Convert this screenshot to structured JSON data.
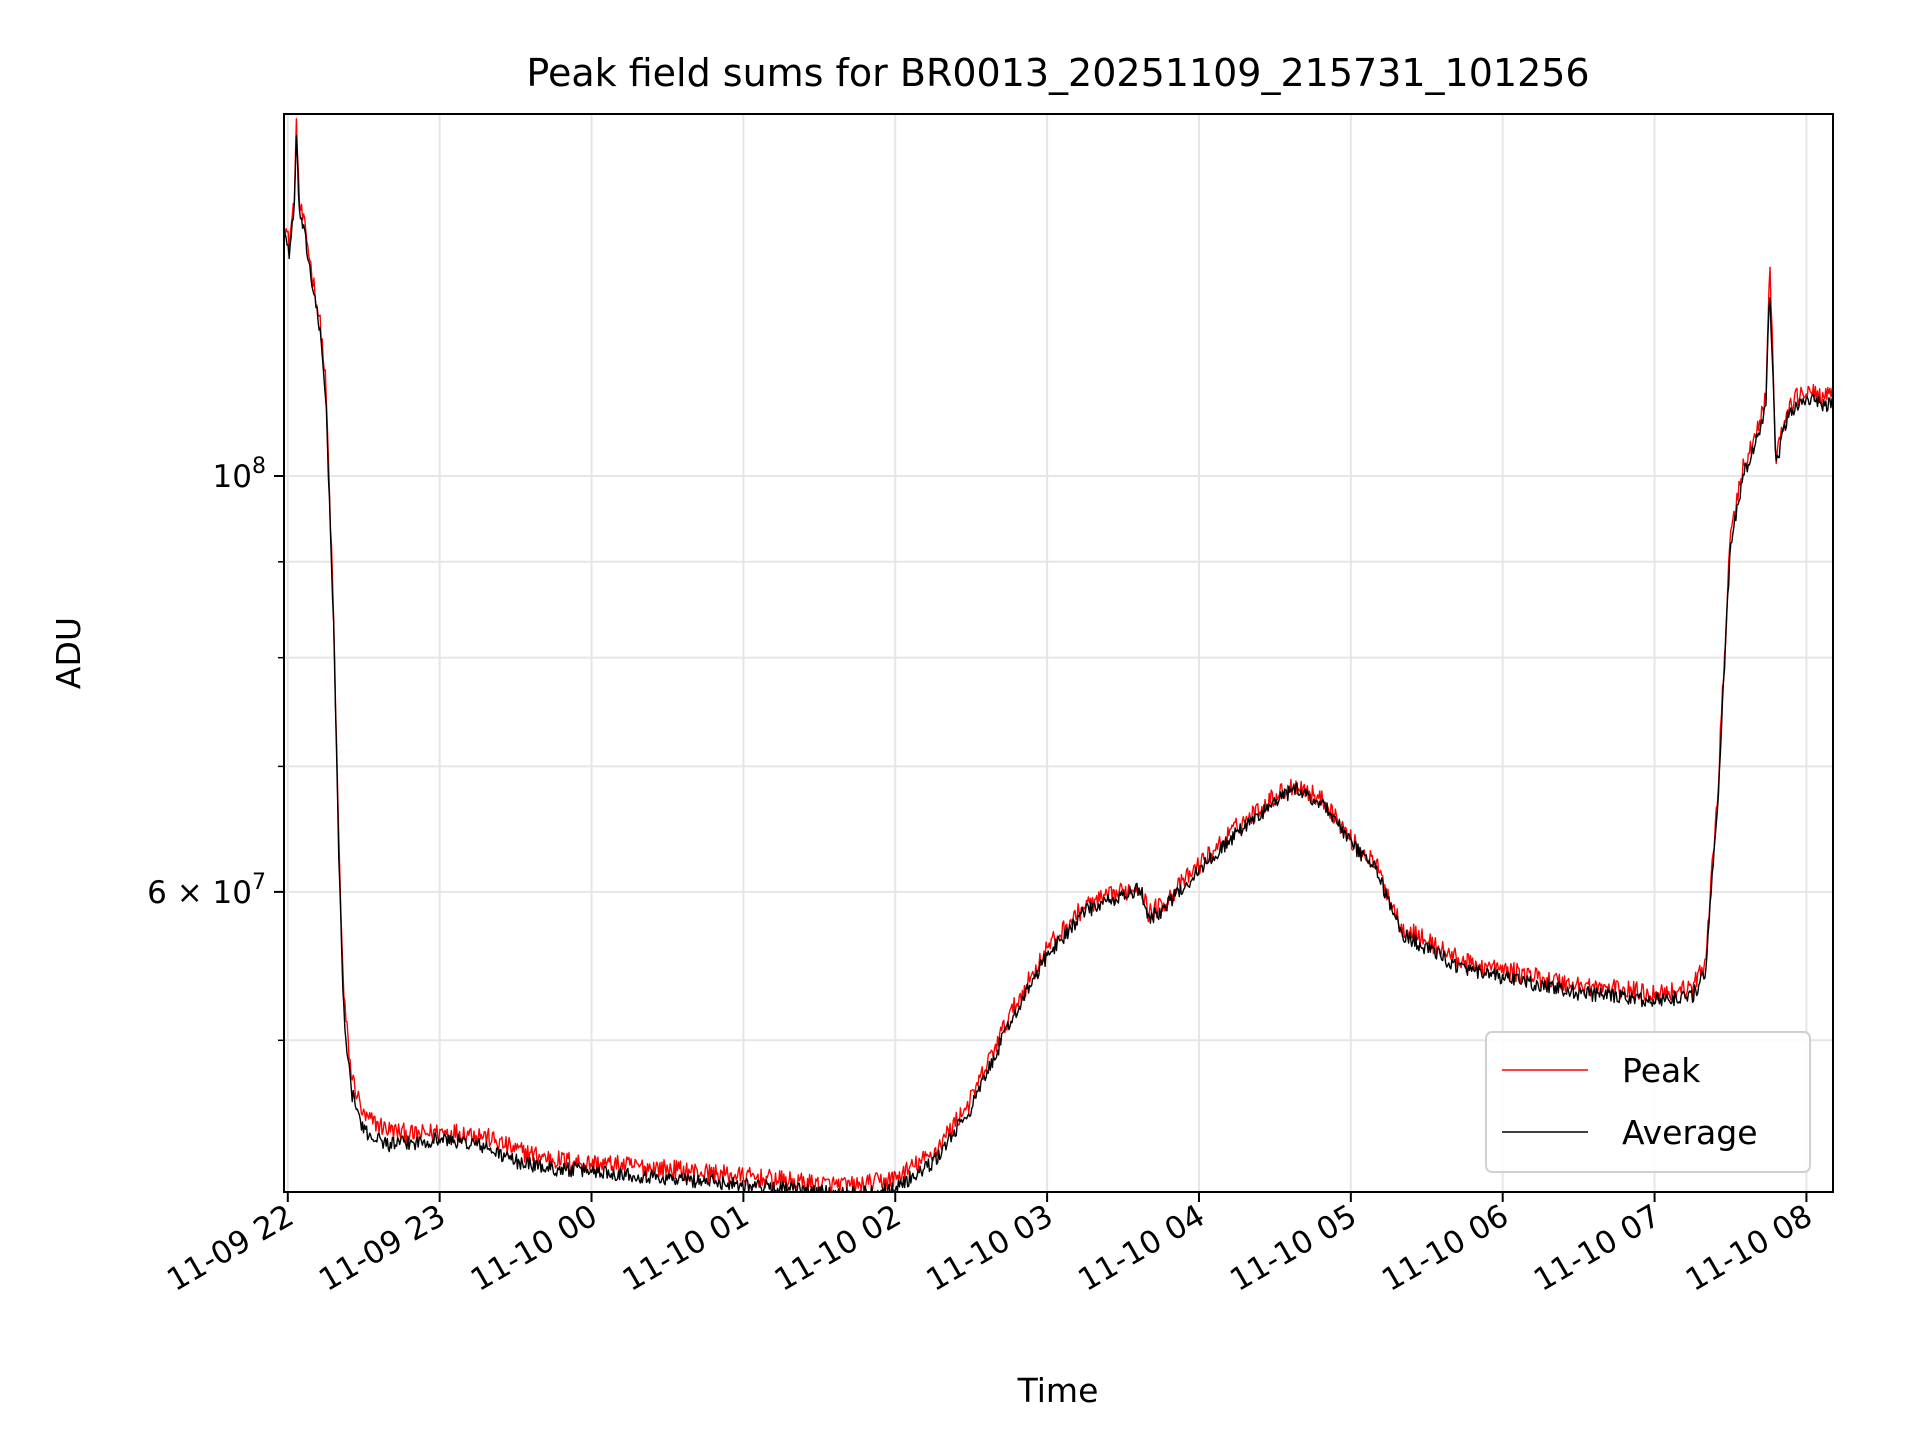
{
  "chart_data": {
    "type": "line",
    "title": "Peak field sums for BR0013_20251109_215731_101256",
    "xlabel": "Time",
    "ylabel": "ADU",
    "x_axis": "datetime",
    "y_scale": "log",
    "xlim": [
      "2025-11-09 21:58:30",
      "2025-11-10 08:10:30"
    ],
    "ylim": [
      41500000,
      156000000
    ],
    "x_ticks": [
      {
        "label": "11-09 22",
        "value": "2025-11-09 22:00"
      },
      {
        "label": "11-09 23",
        "value": "2025-11-09 23:00"
      },
      {
        "label": "11-10 00",
        "value": "2025-11-10 00:00"
      },
      {
        "label": "11-10 01",
        "value": "2025-11-10 01:00"
      },
      {
        "label": "11-10 02",
        "value": "2025-11-10 02:00"
      },
      {
        "label": "11-10 03",
        "value": "2025-11-10 03:00"
      },
      {
        "label": "11-10 04",
        "value": "2025-11-10 04:00"
      },
      {
        "label": "11-10 05",
        "value": "2025-11-10 05:00"
      },
      {
        "label": "11-10 06",
        "value": "2025-11-10 06:00"
      },
      {
        "label": "11-10 07",
        "value": "2025-11-10 07:00"
      },
      {
        "label": "11-10 08",
        "value": "2025-11-10 08:00"
      }
    ],
    "y_major_ticks": [
      {
        "value": 60000000,
        "mantissa": "6 × 10",
        "exponent": "7"
      },
      {
        "value": 100000000,
        "mantissa": "10",
        "exponent": "8"
      }
    ],
    "y_minor_ticks": [
      50000000,
      70000000,
      80000000,
      90000000
    ],
    "grid": true,
    "legend": {
      "position": "lower-right"
    },
    "series": [
      {
        "name": "Peak",
        "color": "#ff0000",
        "noise": 0.012,
        "points": [
          [
            "2025-11-09 21:58:30",
            137000000
          ],
          [
            "2025-11-09 22:00:30",
            133000000
          ],
          [
            "2025-11-09 22:02:30",
            140000000
          ],
          [
            "2025-11-09 22:03:30",
            155000000
          ],
          [
            "2025-11-09 22:04:30",
            140000000
          ],
          [
            "2025-11-09 22:07:00",
            135000000
          ],
          [
            "2025-11-09 22:13:00",
            120000000
          ],
          [
            "2025-11-09 22:15:00",
            112000000
          ],
          [
            "2025-11-09 22:18:00",
            85000000
          ],
          [
            "2025-11-09 22:20:00",
            65000000
          ],
          [
            "2025-11-09 22:22:00",
            53000000
          ],
          [
            "2025-11-09 22:25:00",
            48000000
          ],
          [
            "2025-11-09 22:30:00",
            45500000
          ],
          [
            "2025-11-09 22:40:00",
            44800000
          ],
          [
            "2025-11-09 22:50:00",
            44500000
          ],
          [
            "2025-11-09 23:00:00",
            44700000
          ],
          [
            "2025-11-09 23:15:00",
            44600000
          ],
          [
            "2025-11-09 23:30:00",
            43700000
          ],
          [
            "2025-11-09 23:45:00",
            43200000
          ],
          [
            "2025-11-10 00:00:00",
            43000000
          ],
          [
            "2025-11-10 00:30:00",
            42700000
          ],
          [
            "2025-11-10 01:00:00",
            42300000
          ],
          [
            "2025-11-10 01:30:00",
            41900000
          ],
          [
            "2025-11-10 01:45:00",
            41800000
          ],
          [
            "2025-11-10 02:00:00",
            42200000
          ],
          [
            "2025-11-10 02:15:00",
            43500000
          ],
          [
            "2025-11-10 02:30:00",
            46500000
          ],
          [
            "2025-11-10 02:45:00",
            51500000
          ],
          [
            "2025-11-10 03:00:00",
            56000000
          ],
          [
            "2025-11-10 03:15:00",
            59000000
          ],
          [
            "2025-11-10 03:30:00",
            60000000
          ],
          [
            "2025-11-10 03:37:00",
            60500000
          ],
          [
            "2025-11-10 03:40:00",
            58500000
          ],
          [
            "2025-11-10 03:45:00",
            59000000
          ],
          [
            "2025-11-10 04:00:00",
            62000000
          ],
          [
            "2025-11-10 04:15:00",
            65000000
          ],
          [
            "2025-11-10 04:30:00",
            67500000
          ],
          [
            "2025-11-10 04:38:00",
            68500000
          ],
          [
            "2025-11-10 04:50:00",
            67000000
          ],
          [
            "2025-11-10 05:00:00",
            64000000
          ],
          [
            "2025-11-10 05:10:00",
            62000000
          ],
          [
            "2025-11-10 05:20:00",
            57500000
          ],
          [
            "2025-11-10 05:30:00",
            56500000
          ],
          [
            "2025-11-10 05:45:00",
            55000000
          ],
          [
            "2025-11-10 06:00:00",
            54500000
          ],
          [
            "2025-11-10 06:30:00",
            53500000
          ],
          [
            "2025-11-10 07:00:00",
            53000000
          ],
          [
            "2025-11-10 07:15:00",
            53300000
          ],
          [
            "2025-11-10 07:20:00",
            55000000
          ],
          [
            "2025-11-10 07:25:00",
            68000000
          ],
          [
            "2025-11-10 07:30:00",
            93000000
          ],
          [
            "2025-11-10 07:35:00",
            101000000
          ],
          [
            "2025-11-10 07:40:00",
            105000000
          ],
          [
            "2025-11-10 07:44:00",
            110000000
          ],
          [
            "2025-11-10 07:45:30",
            130000000
          ],
          [
            "2025-11-10 07:48:00",
            102000000
          ],
          [
            "2025-11-10 07:52:00",
            108000000
          ],
          [
            "2025-11-10 07:58:00",
            111000000
          ],
          [
            "2025-11-10 08:10:30",
            110000000
          ]
        ]
      },
      {
        "name": "Average",
        "color": "#000000",
        "noise": 0.009,
        "points": [
          [
            "2025-11-09 21:58:30",
            135500000
          ],
          [
            "2025-11-09 22:00:30",
            131500000
          ],
          [
            "2025-11-09 22:02:30",
            138500000
          ],
          [
            "2025-11-09 22:03:30",
            152000000
          ],
          [
            "2025-11-09 22:04:30",
            138500000
          ],
          [
            "2025-11-09 22:07:00",
            133500000
          ],
          [
            "2025-11-09 22:13:00",
            118500000
          ],
          [
            "2025-11-09 22:15:00",
            110500000
          ],
          [
            "2025-11-09 22:18:00",
            84000000
          ],
          [
            "2025-11-09 22:20:00",
            64000000
          ],
          [
            "2025-11-09 22:22:00",
            52000000
          ],
          [
            "2025-11-09 22:25:00",
            47000000
          ],
          [
            "2025-11-09 22:30:00",
            44700000
          ],
          [
            "2025-11-09 22:40:00",
            44000000
          ],
          [
            "2025-11-09 22:50:00",
            44100000
          ],
          [
            "2025-11-09 23:00:00",
            44300000
          ],
          [
            "2025-11-09 23:15:00",
            44000000
          ],
          [
            "2025-11-09 23:30:00",
            43100000
          ],
          [
            "2025-11-09 23:45:00",
            42700000
          ],
          [
            "2025-11-10 00:00:00",
            42600000
          ],
          [
            "2025-11-10 00:30:00",
            42200000
          ],
          [
            "2025-11-10 01:00:00",
            41900000
          ],
          [
            "2025-11-10 01:30:00",
            41500000
          ],
          [
            "2025-11-10 01:45:00",
            41400000
          ],
          [
            "2025-11-10 02:00:00",
            41700000
          ],
          [
            "2025-11-10 02:15:00",
            43000000
          ],
          [
            "2025-11-10 02:30:00",
            46000000
          ],
          [
            "2025-11-10 02:45:00",
            51000000
          ],
          [
            "2025-11-10 03:00:00",
            55500000
          ],
          [
            "2025-11-10 03:15:00",
            58600000
          ],
          [
            "2025-11-10 03:30:00",
            59700000
          ],
          [
            "2025-11-10 03:37:00",
            60200000
          ],
          [
            "2025-11-10 03:40:00",
            58100000
          ],
          [
            "2025-11-10 03:45:00",
            58600000
          ],
          [
            "2025-11-10 04:00:00",
            61600000
          ],
          [
            "2025-11-10 04:15:00",
            64500000
          ],
          [
            "2025-11-10 04:30:00",
            67000000
          ],
          [
            "2025-11-10 04:38:00",
            68100000
          ],
          [
            "2025-11-10 04:50:00",
            66700000
          ],
          [
            "2025-11-10 05:00:00",
            63700000
          ],
          [
            "2025-11-10 05:10:00",
            61700000
          ],
          [
            "2025-11-10 05:20:00",
            57000000
          ],
          [
            "2025-11-10 05:30:00",
            56000000
          ],
          [
            "2025-11-10 05:45:00",
            54500000
          ],
          [
            "2025-11-10 06:00:00",
            54000000
          ],
          [
            "2025-11-10 06:30:00",
            53000000
          ],
          [
            "2025-11-10 07:00:00",
            52500000
          ],
          [
            "2025-11-10 07:15:00",
            52800000
          ],
          [
            "2025-11-10 07:20:00",
            54300000
          ],
          [
            "2025-11-10 07:25:00",
            67000000
          ],
          [
            "2025-11-10 07:30:00",
            92000000
          ],
          [
            "2025-11-10 07:35:00",
            100000000
          ],
          [
            "2025-11-10 07:40:00",
            104000000
          ],
          [
            "2025-11-10 07:44:00",
            109000000
          ],
          [
            "2025-11-10 07:45:30",
            126000000
          ],
          [
            "2025-11-10 07:48:00",
            101000000
          ],
          [
            "2025-11-10 07:52:00",
            107000000
          ],
          [
            "2025-11-10 07:58:00",
            110000000
          ],
          [
            "2025-11-10 08:10:30",
            109000000
          ]
        ]
      }
    ]
  }
}
